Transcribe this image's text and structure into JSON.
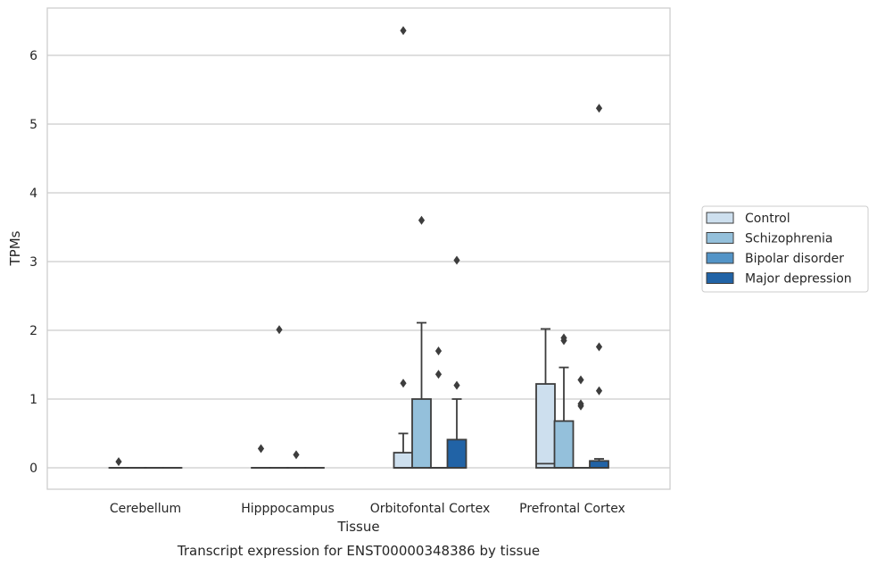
{
  "chart_data": {
    "type": "box",
    "title": "Transcript expression for ENST00000348386 by tissue",
    "xlabel": "Tissue",
    "ylabel": "TPMs",
    "ylim": [
      -0.3,
      6.7
    ],
    "yticks": [
      0,
      1,
      2,
      3,
      4,
      5,
      6
    ],
    "grid": true,
    "legend_position": "right",
    "categories": [
      "Cerebellum",
      "Hipppocampus",
      "Orbitofontal Cortex",
      "Prefrontal Cortex"
    ],
    "series": [
      {
        "name": "Control",
        "color": "#cddfee"
      },
      {
        "name": "Schizophrenia",
        "color": "#94c0db"
      },
      {
        "name": "Bipolar disorder",
        "color": "#5394c7"
      },
      {
        "name": "Major depression",
        "color": "#2163a6"
      }
    ],
    "boxes": [
      {
        "category": 0,
        "series": 0,
        "q1": 0,
        "median": 0,
        "q3": 0,
        "whisker_low": 0,
        "whisker_high": 0,
        "outliers": [
          0.09
        ]
      },
      {
        "category": 0,
        "series": 1,
        "q1": 0,
        "median": 0,
        "q3": 0,
        "whisker_low": 0,
        "whisker_high": 0,
        "outliers": []
      },
      {
        "category": 0,
        "series": 2,
        "q1": 0,
        "median": 0,
        "q3": 0,
        "whisker_low": 0,
        "whisker_high": 0,
        "outliers": []
      },
      {
        "category": 0,
        "series": 3,
        "q1": 0,
        "median": 0,
        "q3": 0,
        "whisker_low": 0,
        "whisker_high": 0,
        "outliers": []
      },
      {
        "category": 1,
        "series": 0,
        "q1": 0,
        "median": 0,
        "q3": 0,
        "whisker_low": 0,
        "whisker_high": 0,
        "outliers": [
          0.28
        ]
      },
      {
        "category": 1,
        "series": 1,
        "q1": 0,
        "median": 0,
        "q3": 0,
        "whisker_low": 0,
        "whisker_high": 0,
        "outliers": [
          2.01
        ]
      },
      {
        "category": 1,
        "series": 2,
        "q1": 0,
        "median": 0,
        "q3": 0,
        "whisker_low": 0,
        "whisker_high": 0,
        "outliers": [
          0.19
        ]
      },
      {
        "category": 1,
        "series": 3,
        "q1": 0,
        "median": 0,
        "q3": 0,
        "whisker_low": 0,
        "whisker_high": 0,
        "outliers": []
      },
      {
        "category": 2,
        "series": 0,
        "q1": 0,
        "median": 0,
        "q3": 0.22,
        "whisker_low": 0,
        "whisker_high": 0.5,
        "outliers": [
          1.23,
          6.36
        ]
      },
      {
        "category": 2,
        "series": 1,
        "q1": 0,
        "median": 0,
        "q3": 1.0,
        "whisker_low": 0,
        "whisker_high": 2.11,
        "outliers": [
          3.6
        ]
      },
      {
        "category": 2,
        "series": 2,
        "q1": 0,
        "median": 0,
        "q3": 0,
        "whisker_low": 0,
        "whisker_high": 0,
        "outliers": [
          1.36,
          1.7
        ]
      },
      {
        "category": 2,
        "series": 3,
        "q1": 0,
        "median": 0,
        "q3": 0.41,
        "whisker_low": 0,
        "whisker_high": 1.0,
        "outliers": [
          1.2,
          3.02
        ]
      },
      {
        "category": 3,
        "series": 0,
        "q1": 0,
        "median": 0.06,
        "q3": 1.22,
        "whisker_low": 0,
        "whisker_high": 2.02,
        "outliers": []
      },
      {
        "category": 3,
        "series": 1,
        "q1": 0,
        "median": 0,
        "q3": 0.68,
        "whisker_low": 0,
        "whisker_high": 1.46,
        "outliers": [
          1.85,
          1.89
        ]
      },
      {
        "category": 3,
        "series": 2,
        "q1": 0,
        "median": 0,
        "q3": 0,
        "whisker_low": 0,
        "whisker_high": 0,
        "outliers": [
          0.9,
          0.93,
          1.28
        ]
      },
      {
        "category": 3,
        "series": 3,
        "q1": 0,
        "median": 0,
        "q3": 0.1,
        "whisker_low": 0,
        "whisker_high": 0.13,
        "outliers": [
          1.12,
          1.76,
          5.23
        ]
      }
    ]
  }
}
